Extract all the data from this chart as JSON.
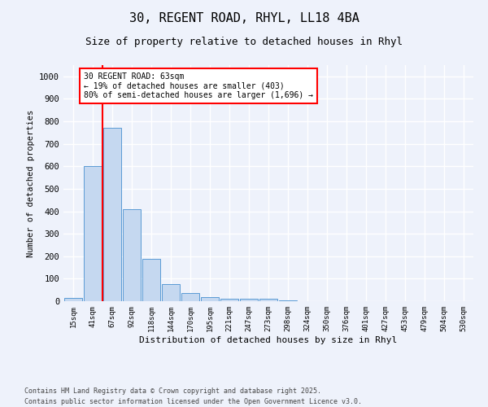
{
  "title_line1": "30, REGENT ROAD, RHYL, LL18 4BA",
  "title_line2": "Size of property relative to detached houses in Rhyl",
  "xlabel": "Distribution of detached houses by size in Rhyl",
  "ylabel": "Number of detached properties",
  "categories": [
    "15sqm",
    "41sqm",
    "67sqm",
    "92sqm",
    "118sqm",
    "144sqm",
    "170sqm",
    "195sqm",
    "221sqm",
    "247sqm",
    "273sqm",
    "298sqm",
    "324sqm",
    "350sqm",
    "376sqm",
    "401sqm",
    "427sqm",
    "453sqm",
    "479sqm",
    "504sqm",
    "530sqm"
  ],
  "values": [
    15,
    600,
    770,
    410,
    190,
    75,
    35,
    18,
    12,
    10,
    12,
    5,
    0,
    0,
    0,
    0,
    0,
    0,
    0,
    0,
    0
  ],
  "bar_color": "#c5d8f0",
  "bar_edge_color": "#5b9bd5",
  "annotation_line1": "30 REGENT ROAD: 63sqm",
  "annotation_line2": "← 19% of detached houses are smaller (403)",
  "annotation_line3": "80% of semi-detached houses are larger (1,696) →",
  "ylim": [
    0,
    1050
  ],
  "yticks": [
    0,
    100,
    200,
    300,
    400,
    500,
    600,
    700,
    800,
    900,
    1000
  ],
  "background_color": "#eef2fb",
  "grid_color": "#ffffff",
  "footnote_line1": "Contains HM Land Registry data © Crown copyright and database right 2025.",
  "footnote_line2": "Contains public sector information licensed under the Open Government Licence v3.0."
}
